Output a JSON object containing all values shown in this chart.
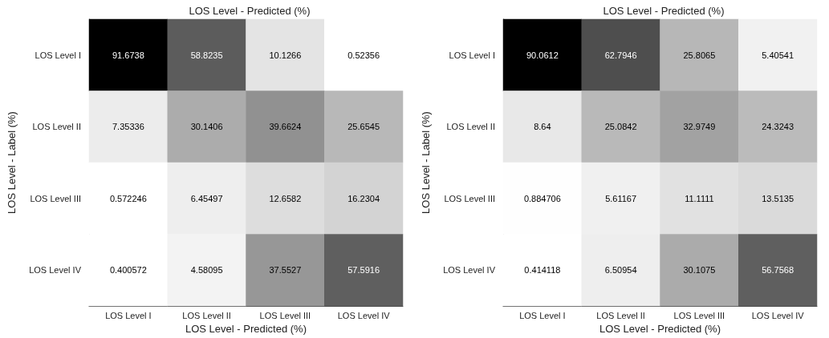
{
  "chart_data": [
    {
      "type": "heatmap",
      "title": "LOS Level - Predicted (%)",
      "xlabel": "LOS Level - Predicted (%)",
      "ylabel": "LOS Level - Label (%)",
      "categories": [
        "LOS Level I",
        "LOS Level II",
        "LOS Level III",
        "LOS Level IV"
      ],
      "y_categories": [
        "LOS Level I",
        "LOS Level II",
        "LOS Level III",
        "LOS Level IV"
      ],
      "data_labels": true,
      "cells": [
        [
          91.6738,
          58.8235,
          10.1266,
          0.52356
        ],
        [
          7.35336,
          30.1406,
          39.6624,
          25.6545
        ],
        [
          0.572246,
          6.45497,
          12.6582,
          16.2304
        ],
        [
          0.400572,
          4.58095,
          37.5527,
          57.5916
        ]
      ]
    },
    {
      "type": "heatmap",
      "title": "LOS Level - Predicted (%)",
      "xlabel": "LOS Level - Predicted (%)",
      "ylabel": "LOS Level - Label (%)",
      "categories": [
        "LOS Level I",
        "LOS Level II",
        "LOS Level III",
        "LOS Level IV"
      ],
      "y_categories": [
        "LOS Level I",
        "LOS Level II",
        "LOS Level III",
        "LOS Level IV"
      ],
      "data_labels": true,
      "cells": [
        [
          90.0612,
          62.7946,
          25.8065,
          5.40541
        ],
        [
          8.64,
          25.0842,
          32.9749,
          24.3243
        ],
        [
          0.884706,
          5.61167,
          11.1111,
          13.5135
        ],
        [
          0.414118,
          6.50954,
          30.1075,
          56.7568
        ]
      ]
    }
  ]
}
